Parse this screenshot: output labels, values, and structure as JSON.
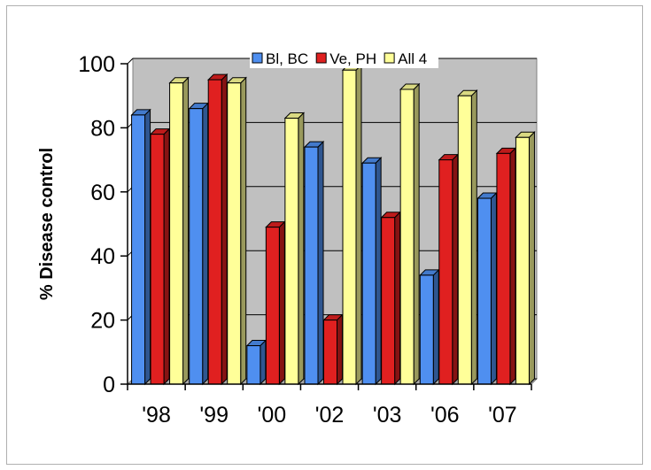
{
  "chart_data": {
    "type": "bar",
    "style": "3d-clustered-column",
    "categories": [
      "'98",
      "'99",
      "'00",
      "'02",
      "'03",
      "'06",
      "'07"
    ],
    "series": [
      {
        "name": "Bl, BC",
        "color": "#4f8ff0",
        "values": [
          84,
          86,
          12,
          74,
          69,
          34,
          58
        ]
      },
      {
        "name": "Ve, PH",
        "color": "#e02020",
        "values": [
          78,
          95,
          49,
          20,
          52,
          70,
          72
        ]
      },
      {
        "name": "All 4",
        "color": "#ffff99",
        "values": [
          94,
          94,
          83,
          98,
          92,
          90,
          77
        ]
      }
    ],
    "title": "",
    "xlabel": "",
    "ylabel": "% Disease control",
    "ylim": [
      0,
      100
    ],
    "yticks": [
      0,
      20,
      40,
      60,
      80,
      100
    ],
    "grid": true,
    "plot_background": "#c0c0c0",
    "legend_position": "top"
  }
}
